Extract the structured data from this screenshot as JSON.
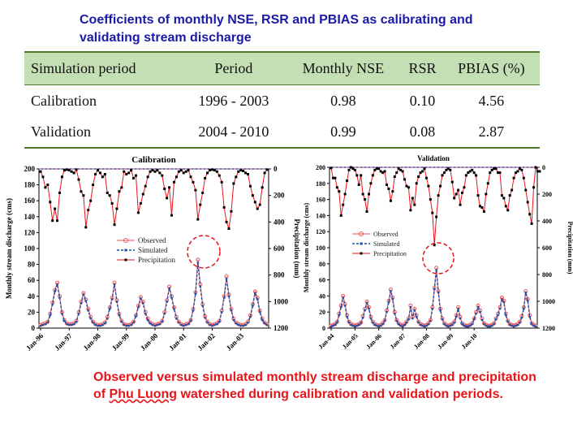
{
  "title": "Coefficients of monthly NSE, RSR and PBIAS as calibrating and validating stream discharge",
  "table": {
    "headers": [
      "Simulation period",
      "Period",
      "Monthly NSE",
      "RSR",
      "PBIAS (%)"
    ],
    "rows": [
      [
        "Calibration",
        "1996 - 2003",
        "0.98",
        "0.10",
        "4.56"
      ],
      [
        "Validation",
        "2004 - 2010",
        "0.99",
        "0.08",
        "2.87"
      ]
    ]
  },
  "caption": {
    "part1": "Observed versus simulated monthly stream discharge and precipitation of ",
    "place": "Phu Luong",
    "part2": " watershed during calibration and validation periods."
  },
  "colors": {
    "observed": "#e85a5a",
    "simulated": "#1f4fa8",
    "precipitation": "#000000",
    "precip_line": "#e8141a",
    "highlight": "#e8141a"
  },
  "chart_data": [
    {
      "type": "line",
      "title": "Calibration",
      "ylabel": "Monthly stream discharge (cms)",
      "y2label": "Precipitation (mm)",
      "ylim": [
        0,
        200
      ],
      "y2lim": [
        1200,
        0
      ],
      "yticks": [
        0,
        20,
        40,
        60,
        80,
        100,
        120,
        140,
        160,
        180,
        200
      ],
      "y2ticks": [
        0,
        200,
        400,
        600,
        800,
        1000,
        1200
      ],
      "xticks": [
        "Jan-96",
        "Jan-97",
        "Jan-98",
        "Jan-99",
        "Jan-00",
        "Jan-01",
        "Jan-02",
        "Jan-03"
      ],
      "legend": [
        "Observed",
        "Simulated",
        "Precipitation"
      ],
      "legend_position": "center-left",
      "series": [
        {
          "name": "Observed",
          "values": [
            4,
            5,
            6,
            8,
            18,
            32,
            48,
            57,
            40,
            20,
            10,
            6,
            5,
            5,
            6,
            9,
            20,
            33,
            44,
            36,
            24,
            14,
            8,
            5,
            4,
            4,
            5,
            7,
            14,
            26,
            38,
            57,
            35,
            18,
            9,
            5,
            4,
            4,
            5,
            8,
            16,
            28,
            39,
            33,
            20,
            12,
            7,
            5,
            4,
            5,
            6,
            9,
            20,
            35,
            52,
            40,
            26,
            14,
            8,
            5,
            4,
            5,
            6,
            10,
            24,
            45,
            86,
            55,
            30,
            15,
            8,
            5,
            4,
            5,
            6,
            9,
            22,
            40,
            65,
            42,
            24,
            12,
            7,
            5,
            4,
            4,
            5,
            8,
            16,
            30,
            46,
            38,
            22,
            12,
            7,
            5
          ]
        },
        {
          "name": "Simulated",
          "values": [
            3,
            4,
            5,
            7,
            16,
            30,
            46,
            55,
            38,
            18,
            9,
            5,
            4,
            4,
            5,
            8,
            18,
            31,
            42,
            34,
            22,
            12,
            7,
            4,
            3,
            3,
            4,
            6,
            12,
            24,
            36,
            55,
            33,
            16,
            8,
            4,
            3,
            3,
            4,
            7,
            15,
            26,
            37,
            31,
            18,
            10,
            6,
            4,
            3,
            4,
            5,
            8,
            18,
            33,
            50,
            38,
            24,
            12,
            7,
            4,
            3,
            4,
            5,
            9,
            22,
            43,
            82,
            52,
            28,
            13,
            7,
            4,
            3,
            4,
            5,
            8,
            20,
            38,
            62,
            40,
            22,
            10,
            6,
            4,
            3,
            3,
            4,
            7,
            14,
            28,
            44,
            36,
            20,
            10,
            6,
            4
          ]
        },
        {
          "name": "Precipitation",
          "values": [
            20,
            60,
            140,
            120,
            250,
            390,
            300,
            390,
            180,
            60,
            10,
            5,
            10,
            20,
            30,
            5,
            80,
            170,
            200,
            440,
            310,
            240,
            120,
            40,
            10,
            30,
            60,
            40,
            180,
            200,
            260,
            420,
            300,
            170,
            140,
            20,
            40,
            30,
            10,
            70,
            50,
            330,
            260,
            190,
            130,
            60,
            20,
            10,
            20,
            10,
            30,
            50,
            150,
            220,
            140,
            350,
            100,
            60,
            20,
            10,
            30,
            20,
            10,
            60,
            100,
            160,
            380,
            270,
            180,
            70,
            30,
            10,
            5,
            10,
            20,
            50,
            100,
            290,
            400,
            450,
            320,
            110,
            60,
            20,
            10,
            15,
            30,
            40,
            130,
            200,
            250,
            300,
            270,
            140,
            30,
            5
          ]
        }
      ]
    },
    {
      "type": "line",
      "title": "Validation",
      "ylabel": "Monthly stream discharge (cms)",
      "y2label": "Precipitation (mm)",
      "ylim": [
        0,
        200
      ],
      "y2lim": [
        1200,
        0
      ],
      "yticks": [
        0,
        20,
        40,
        60,
        80,
        100,
        120,
        140,
        160,
        180,
        200
      ],
      "y2ticks": [
        0,
        200,
        400,
        600,
        800,
        1000,
        1200
      ],
      "xticks": [
        "Jan-04",
        "Jan-05",
        "Jan-06",
        "Jan-07",
        "Jan-08",
        "Jan-09",
        "Jan-10"
      ],
      "legend": [
        "Observed",
        "Simulated",
        "Precipitation"
      ],
      "legend_position": "center-left",
      "series": [
        {
          "name": "Observed",
          "values": [
            3,
            4,
            5,
            8,
            18,
            28,
            40,
            30,
            16,
            8,
            5,
            4,
            3,
            4,
            5,
            7,
            15,
            24,
            33,
            26,
            14,
            8,
            5,
            4,
            3,
            4,
            6,
            10,
            22,
            34,
            48,
            38,
            20,
            10,
            6,
            4,
            3,
            5,
            8,
            12,
            28,
            14,
            24,
            16,
            8,
            5,
            4,
            3,
            4,
            6,
            10,
            26,
            50,
            75,
            46,
            24,
            12,
            6,
            4,
            3,
            4,
            5,
            8,
            16,
            26,
            14,
            6,
            4,
            3,
            3,
            4,
            6,
            12,
            20,
            28,
            22,
            12,
            6,
            4,
            3,
            3,
            4,
            6,
            12,
            18,
            26,
            38,
            34,
            18,
            9,
            5,
            4,
            3,
            4,
            5,
            8,
            15,
            26,
            46,
            36,
            16,
            6,
            4,
            3
          ]
        },
        {
          "name": "Simulated",
          "values": [
            2,
            3,
            4,
            7,
            16,
            26,
            38,
            28,
            14,
            7,
            4,
            3,
            2,
            3,
            4,
            6,
            13,
            22,
            31,
            24,
            12,
            7,
            4,
            3,
            2,
            3,
            5,
            9,
            20,
            32,
            46,
            36,
            18,
            9,
            5,
            3,
            2,
            4,
            7,
            11,
            26,
            12,
            22,
            14,
            7,
            4,
            3,
            2,
            3,
            5,
            9,
            24,
            48,
            72,
            44,
            22,
            11,
            5,
            3,
            2,
            3,
            4,
            7,
            14,
            24,
            12,
            5,
            3,
            2,
            2,
            3,
            5,
            11,
            18,
            26,
            20,
            10,
            5,
            3,
            2,
            2,
            3,
            5,
            11,
            16,
            24,
            36,
            32,
            16,
            8,
            4,
            3,
            2,
            3,
            4,
            7,
            13,
            24,
            44,
            34,
            14,
            5,
            3,
            2
          ]
        },
        {
          "name": "Precipitation",
          "values": [
            5,
            80,
            80,
            150,
            180,
            360,
            280,
            200,
            100,
            20,
            0,
            10,
            20,
            60,
            130,
            60,
            200,
            240,
            330,
            200,
            120,
            60,
            20,
            10,
            10,
            30,
            40,
            30,
            130,
            160,
            250,
            180,
            70,
            40,
            10,
            20,
            30,
            90,
            140,
            150,
            320,
            230,
            280,
            120,
            70,
            40,
            30,
            10,
            80,
            140,
            240,
            340,
            580,
            370,
            210,
            140,
            60,
            40,
            20,
            10,
            20,
            110,
            230,
            200,
            170,
            280,
            190,
            150,
            60,
            40,
            30,
            20,
            40,
            60,
            210,
            290,
            300,
            330,
            200,
            120,
            40,
            20,
            10,
            10,
            40,
            40,
            210,
            230,
            290,
            320,
            210,
            170,
            80,
            40,
            30,
            10,
            20,
            80,
            170,
            260,
            350,
            420,
            150,
            0,
            30,
            30
          ]
        }
      ]
    }
  ]
}
